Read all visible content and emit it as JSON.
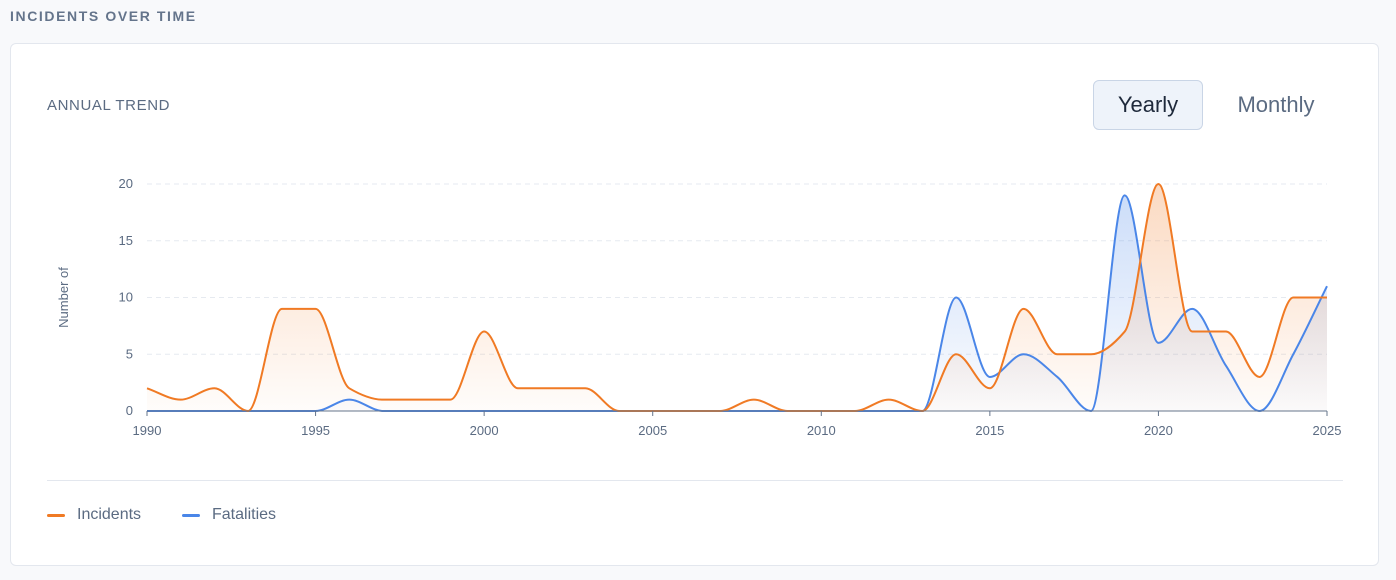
{
  "section_title": "INCIDENTS OVER TIME",
  "card_title": "ANNUAL TREND",
  "toggles": [
    {
      "label": "Yearly",
      "active": true
    },
    {
      "label": "Monthly",
      "active": false
    }
  ],
  "colors": {
    "incidents": "#f07a24",
    "fatalities": "#4a86e8"
  },
  "chart_data": {
    "type": "area",
    "title": "",
    "xlabel": "",
    "ylabel": "Number of",
    "xlim": [
      1990,
      2025
    ],
    "ylim": [
      0,
      20
    ],
    "x_ticks": [
      1990,
      1995,
      2000,
      2005,
      2010,
      2015,
      2020,
      2025
    ],
    "y_ticks": [
      0,
      5,
      10,
      15,
      20
    ],
    "grid": "horizontal dashed",
    "legend": "bottom-left",
    "x": [
      1990,
      1991,
      1992,
      1993,
      1994,
      1995,
      1996,
      1997,
      1998,
      1999,
      2000,
      2001,
      2002,
      2003,
      2004,
      2005,
      2006,
      2007,
      2008,
      2009,
      2010,
      2011,
      2012,
      2013,
      2014,
      2015,
      2016,
      2017,
      2018,
      2019,
      2020,
      2021,
      2022,
      2023,
      2024,
      2025
    ],
    "series": [
      {
        "name": "Incidents",
        "color": "#f07a24",
        "values": [
          2,
          1,
          2,
          0,
          9,
          9,
          2,
          1,
          1,
          1,
          7,
          2,
          2,
          2,
          0,
          0,
          0,
          0,
          1,
          0,
          0,
          0,
          1,
          0,
          5,
          2,
          9,
          5,
          5,
          7,
          20,
          7,
          7,
          3,
          10,
          10
        ]
      },
      {
        "name": "Fatalities",
        "color": "#4a86e8",
        "values": [
          0,
          0,
          0,
          0,
          0,
          0,
          1,
          0,
          0,
          0,
          0,
          0,
          0,
          0,
          0,
          0,
          0,
          0,
          0,
          0,
          0,
          0,
          0,
          0,
          10,
          3,
          5,
          3,
          0,
          19,
          6,
          9,
          4,
          0,
          5,
          11
        ]
      }
    ]
  }
}
